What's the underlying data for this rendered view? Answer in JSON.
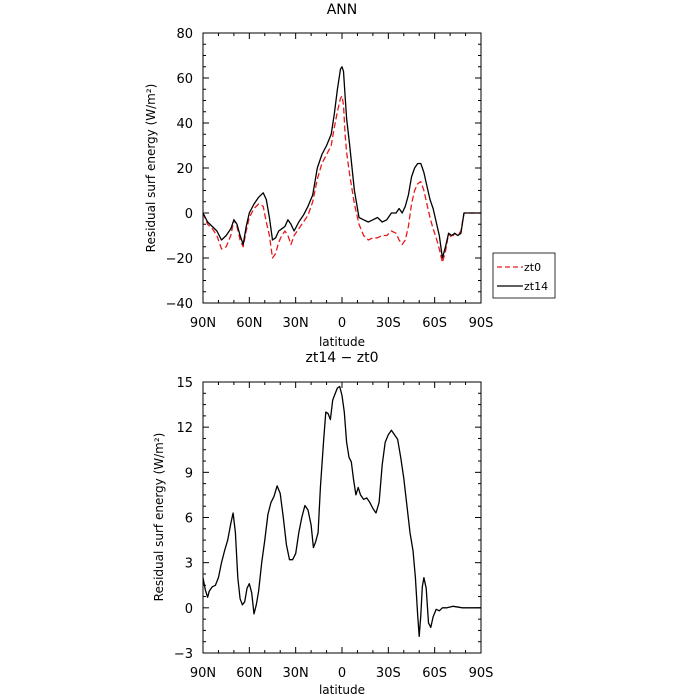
{
  "chart_data": [
    {
      "type": "line",
      "title": "ANN",
      "xlabel": "latitude",
      "ylabel": "Residual surf energy (W/m²)",
      "xlim": [
        90,
        -90
      ],
      "ylim": [
        -40,
        80
      ],
      "xticks": [
        90,
        60,
        30,
        0,
        -30,
        -60,
        -90
      ],
      "xtick_labels": [
        "90N",
        "60N",
        "30N",
        "0",
        "30S",
        "60S",
        "90S"
      ],
      "yticks": [
        -40,
        -20,
        0,
        20,
        40,
        60,
        80
      ],
      "ytick_labels": [
        "−40",
        "−20",
        "0",
        "20",
        "40",
        "60",
        "80"
      ],
      "legend_position": "right",
      "series": [
        {
          "name": "zt0",
          "color": "#e8191b",
          "dash": true,
          "points": [
            [
              90,
              0
            ],
            [
              87,
              -5
            ],
            [
              84,
              -7
            ],
            [
              81,
              -10
            ],
            [
              78,
              -16
            ],
            [
              75,
              -15
            ],
            [
              72,
              -10
            ],
            [
              70,
              -3
            ],
            [
              68,
              -6
            ],
            [
              66,
              -12
            ],
            [
              64,
              -15
            ],
            [
              62,
              -8
            ],
            [
              60,
              -2
            ],
            [
              57,
              2
            ],
            [
              54,
              4
            ],
            [
              51,
              3
            ],
            [
              49,
              -4
            ],
            [
              47,
              -10
            ],
            [
              45,
              -20
            ],
            [
              43,
              -18
            ],
            [
              41,
              -13
            ],
            [
              39,
              -10
            ],
            [
              37,
              -8
            ],
            [
              35,
              -10
            ],
            [
              33,
              -14
            ],
            [
              31,
              -10
            ],
            [
              28,
              -7
            ],
            [
              25,
              -4
            ],
            [
              22,
              -1
            ],
            [
              19,
              5
            ],
            [
              16,
              15
            ],
            [
              13,
              22
            ],
            [
              10,
              26
            ],
            [
              7,
              30
            ],
            [
              5,
              38
            ],
            [
              3,
              45
            ],
            [
              1,
              51
            ],
            [
              0,
              52
            ],
            [
              -1,
              48
            ],
            [
              -2,
              35
            ],
            [
              -3,
              27
            ],
            [
              -5,
              17
            ],
            [
              -8,
              4
            ],
            [
              -11,
              -5
            ],
            [
              -14,
              -10
            ],
            [
              -17,
              -12
            ],
            [
              -20,
              -11
            ],
            [
              -23,
              -11
            ],
            [
              -26,
              -10
            ],
            [
              -29,
              -10
            ],
            [
              -32,
              -8
            ],
            [
              -35,
              -9
            ],
            [
              -37,
              -12
            ],
            [
              -39,
              -14
            ],
            [
              -41,
              -12
            ],
            [
              -43,
              -6
            ],
            [
              -45,
              4
            ],
            [
              -47,
              10
            ],
            [
              -49,
              13
            ],
            [
              -51,
              14
            ],
            [
              -53,
              10
            ],
            [
              -55,
              4
            ],
            [
              -57,
              -2
            ],
            [
              -59,
              -7
            ],
            [
              -61,
              -11
            ],
            [
              -63,
              -16
            ],
            [
              -65,
              -22
            ],
            [
              -67,
              -17
            ],
            [
              -69,
              -9
            ],
            [
              -71,
              -11
            ],
            [
              -73,
              -9
            ],
            [
              -75,
              -10
            ],
            [
              -77,
              -8
            ],
            [
              -79,
              0
            ],
            [
              -82,
              0
            ],
            [
              -85,
              0
            ],
            [
              -90,
              0
            ]
          ]
        },
        {
          "name": "zt14",
          "color": "#000000",
          "dash": false,
          "points": [
            [
              90,
              0
            ],
            [
              87,
              -4
            ],
            [
              84,
              -6
            ],
            [
              81,
              -8
            ],
            [
              78,
              -12
            ],
            [
              75,
              -10
            ],
            [
              72,
              -7
            ],
            [
              70,
              -3
            ],
            [
              68,
              -5
            ],
            [
              66,
              -10
            ],
            [
              64,
              -14
            ],
            [
              62,
              -6
            ],
            [
              60,
              0
            ],
            [
              57,
              4
            ],
            [
              54,
              7
            ],
            [
              51,
              9
            ],
            [
              49,
              6
            ],
            [
              47,
              -2
            ],
            [
              45,
              -12
            ],
            [
              43,
              -11
            ],
            [
              41,
              -8
            ],
            [
              39,
              -7
            ],
            [
              37,
              -6
            ],
            [
              35,
              -3
            ],
            [
              33,
              -5
            ],
            [
              31,
              -8
            ],
            [
              28,
              -4
            ],
            [
              25,
              -1
            ],
            [
              22,
              3
            ],
            [
              19,
              8
            ],
            [
              16,
              20
            ],
            [
              13,
              26
            ],
            [
              10,
              30
            ],
            [
              7,
              35
            ],
            [
              5,
              44
            ],
            [
              3,
              55
            ],
            [
              1,
              64
            ],
            [
              0,
              65
            ],
            [
              -1,
              63
            ],
            [
              -2,
              52
            ],
            [
              -3,
              42
            ],
            [
              -5,
              30
            ],
            [
              -8,
              10
            ],
            [
              -11,
              -2
            ],
            [
              -14,
              -3
            ],
            [
              -17,
              -4
            ],
            [
              -20,
              -3
            ],
            [
              -23,
              -2
            ],
            [
              -26,
              -4
            ],
            [
              -29,
              -3
            ],
            [
              -32,
              0
            ],
            [
              -35,
              0
            ],
            [
              -37,
              2
            ],
            [
              -39,
              0
            ],
            [
              -41,
              3
            ],
            [
              -43,
              8
            ],
            [
              -45,
              16
            ],
            [
              -47,
              20
            ],
            [
              -49,
              22
            ],
            [
              -51,
              22
            ],
            [
              -53,
              18
            ],
            [
              -55,
              12
            ],
            [
              -57,
              6
            ],
            [
              -59,
              2
            ],
            [
              -61,
              -4
            ],
            [
              -63,
              -10
            ],
            [
              -65,
              -20
            ],
            [
              -67,
              -15
            ],
            [
              -69,
              -9
            ],
            [
              -71,
              -10
            ],
            [
              -73,
              -9
            ],
            [
              -75,
              -10
            ],
            [
              -77,
              -9
            ],
            [
              -79,
              0
            ],
            [
              -82,
              0
            ],
            [
              -85,
              0
            ],
            [
              -90,
              0
            ]
          ]
        }
      ]
    },
    {
      "type": "line",
      "title": "zt14 − zt0",
      "xlabel": "latitude",
      "ylabel": "Residual surf energy (W/m²)",
      "xlim": [
        90,
        -90
      ],
      "ylim": [
        -3,
        15
      ],
      "xticks": [
        90,
        60,
        30,
        0,
        -30,
        -60,
        -90
      ],
      "xtick_labels": [
        "90N",
        "60N",
        "30N",
        "0",
        "30S",
        "60S",
        "90S"
      ],
      "yticks": [
        -3,
        0,
        3,
        6,
        9,
        12,
        15
      ],
      "ytick_labels": [
        "−3",
        "0",
        "3",
        "6",
        "9",
        "12",
        "15"
      ],
      "series": [
        {
          "name": "",
          "color": "#000000",
          "dash": false,
          "points": [
            [
              90,
              2.0
            ],
            [
              88.5,
              1.2
            ],
            [
              87,
              0.7
            ],
            [
              86,
              1.1
            ],
            [
              84,
              1.4
            ],
            [
              82,
              1.5
            ],
            [
              80,
              2.0
            ],
            [
              78,
              3.0
            ],
            [
              76,
              3.8
            ],
            [
              74,
              4.5
            ],
            [
              72,
              5.6
            ],
            [
              70.5,
              6.3
            ],
            [
              69,
              5.0
            ],
            [
              67.5,
              2.0
            ],
            [
              66,
              0.6
            ],
            [
              64.5,
              0.2
            ],
            [
              63,
              0.4
            ],
            [
              61.5,
              1.3
            ],
            [
              60,
              1.6
            ],
            [
              58.5,
              1.0
            ],
            [
              57,
              -0.4
            ],
            [
              55.5,
              0.2
            ],
            [
              54,
              1.1
            ],
            [
              52,
              3.0
            ],
            [
              50,
              4.5
            ],
            [
              48,
              6.2
            ],
            [
              46,
              7.0
            ],
            [
              44,
              7.4
            ],
            [
              42,
              8.1
            ],
            [
              40,
              7.6
            ],
            [
              38,
              6.0
            ],
            [
              36,
              4.2
            ],
            [
              34,
              3.2
            ],
            [
              32,
              3.2
            ],
            [
              30,
              3.6
            ],
            [
              28,
              5.0
            ],
            [
              26,
              6.0
            ],
            [
              24,
              6.8
            ],
            [
              22,
              6.5
            ],
            [
              20,
              5.5
            ],
            [
              18.5,
              4.0
            ],
            [
              17,
              4.4
            ],
            [
              15.5,
              5.0
            ],
            [
              14,
              8.0
            ],
            [
              12,
              11.0
            ],
            [
              10.5,
              13.0
            ],
            [
              9,
              12.9
            ],
            [
              7.5,
              12.5
            ],
            [
              6,
              13.8
            ],
            [
              4.5,
              14.2
            ],
            [
              3,
              14.6
            ],
            [
              1.5,
              14.7
            ],
            [
              0,
              14.1
            ],
            [
              -1.5,
              13.0
            ],
            [
              -3,
              11.0
            ],
            [
              -4.5,
              10.0
            ],
            [
              -6,
              9.7
            ],
            [
              -7.5,
              8.5
            ],
            [
              -9,
              7.5
            ],
            [
              -10.5,
              8.0
            ],
            [
              -12,
              7.5
            ],
            [
              -14,
              7.2
            ],
            [
              -16,
              7.3
            ],
            [
              -18,
              7.0
            ],
            [
              -20,
              6.6
            ],
            [
              -22,
              6.3
            ],
            [
              -24,
              7.0
            ],
            [
              -26,
              9.5
            ],
            [
              -28,
              11.0
            ],
            [
              -30,
              11.5
            ],
            [
              -32,
              11.8
            ],
            [
              -34,
              11.5
            ],
            [
              -36,
              11.2
            ],
            [
              -38,
              10.0
            ],
            [
              -40,
              8.6
            ],
            [
              -42,
              6.8
            ],
            [
              -44,
              5.0
            ],
            [
              -46,
              3.8
            ],
            [
              -47.5,
              2.0
            ],
            [
              -49,
              -0.5
            ],
            [
              -50,
              -1.9
            ],
            [
              -51,
              -0.5
            ],
            [
              -52,
              1.4
            ],
            [
              -53,
              2.0
            ],
            [
              -54.5,
              1.3
            ],
            [
              -56,
              -1.0
            ],
            [
              -57.5,
              -1.3
            ],
            [
              -59,
              -0.6
            ],
            [
              -61,
              -0.1
            ],
            [
              -63,
              -0.2
            ],
            [
              -65,
              0.0
            ],
            [
              -68,
              0.0
            ],
            [
              -72,
              0.1
            ],
            [
              -78,
              0.0
            ],
            [
              -84,
              0.0
            ],
            [
              -90,
              0.0
            ]
          ]
        }
      ]
    }
  ]
}
